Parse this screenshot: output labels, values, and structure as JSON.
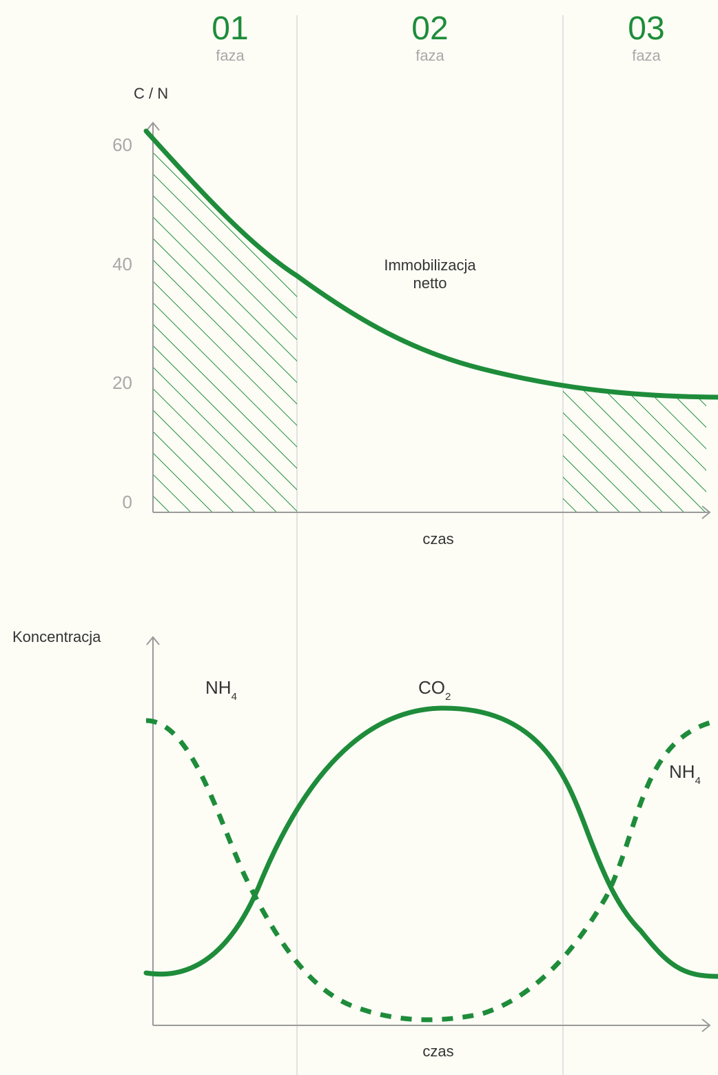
{
  "colors": {
    "accent": "#1e8c3a",
    "axis": "#9a9a9a",
    "divider": "#d8d8d8",
    "tick_text": "#a8a8a8",
    "text": "#333333",
    "background": "#fdfdf6"
  },
  "phases": [
    {
      "number": "01",
      "label": "faza"
    },
    {
      "number": "02",
      "label": "faza"
    },
    {
      "number": "03",
      "label": "faza"
    }
  ],
  "chart_data": [
    {
      "type": "line",
      "ylabel": "C / N",
      "xlabel": "czas",
      "ylim": [
        0,
        60
      ],
      "yticks": [
        "0",
        "20",
        "40",
        "60"
      ],
      "x_phase_boundaries": [
        1,
        2
      ],
      "xlim": [
        0,
        3
      ],
      "series": [
        {
          "x": [
            0,
            0.5,
            1,
            1.5,
            2,
            2.5,
            3
          ],
          "values": [
            62,
            48,
            40,
            29,
            21,
            19,
            18
          ]
        }
      ],
      "hatched_phases": [
        "01",
        "03"
      ],
      "annotation": "Immobilizacja netto",
      "annotation_lines": [
        "Immobilizacja",
        "netto"
      ],
      "grid": false
    },
    {
      "type": "line",
      "ylabel": "Koncentracja",
      "xlabel": "czas",
      "yticks": [],
      "xlim": [
        0,
        3
      ],
      "series": [
        {
          "name": "CO2",
          "name_main": "CO",
          "name_sub": "2",
          "style": "solid"
        },
        {
          "name": "NH4",
          "name_main": "NH",
          "name_sub": "4",
          "style": "dashed"
        }
      ],
      "series_labels": [
        {
          "main": "NH",
          "sub": "4"
        },
        {
          "main": "CO",
          "sub": "2"
        },
        {
          "main": "NH",
          "sub": "4"
        }
      ],
      "grid": false
    }
  ]
}
